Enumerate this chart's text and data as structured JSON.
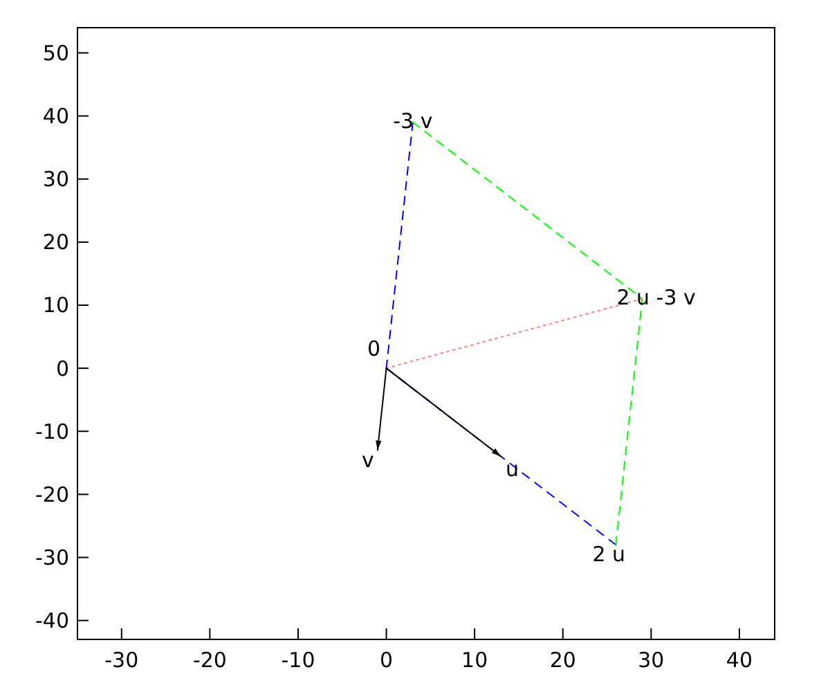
{
  "chart_data": {
    "type": "line",
    "xlim": [
      -35,
      44
    ],
    "ylim": [
      -43,
      54
    ],
    "xticks": [
      -30,
      -20,
      -10,
      0,
      10,
      20,
      30,
      40
    ],
    "yticks": [
      -40,
      -30,
      -20,
      -10,
      0,
      10,
      20,
      30,
      40,
      50
    ],
    "marker": "none",
    "series": [
      {
        "color": "#0000ff",
        "line_style": "dashed",
        "x": [
          0,
          26
        ],
        "values": [
          0,
          -28
        ]
      },
      {
        "color": "#0000ff",
        "line_style": "dashed",
        "x": [
          0,
          3
        ],
        "values": [
          0,
          39
        ]
      },
      {
        "color": "#00ff00",
        "line_style": "dashed",
        "x": [
          3,
          29,
          26
        ],
        "values": [
          39,
          11,
          -28
        ]
      },
      {
        "color": "#ff8080",
        "line_style": "dotted",
        "x": [
          0,
          29
        ],
        "values": [
          0,
          11
        ]
      },
      {
        "color": "#000000",
        "line_style": "solid",
        "x": [
          0,
          13
        ],
        "values": [
          0,
          -14
        ]
      },
      {
        "color": "#000000",
        "line_style": "solid",
        "x": [
          0,
          -1
        ],
        "values": [
          0,
          -13
        ]
      }
    ],
    "annotations": [
      {
        "text": "0",
        "x": 0,
        "y": 0
      },
      {
        "text": "u",
        "x": 13,
        "y": -14
      },
      {
        "text": "v",
        "x": -1,
        "y": -13
      },
      {
        "text": "2 u",
        "x": 26,
        "y": -28
      },
      {
        "text": "-3 v",
        "x": 3,
        "y": 39
      },
      {
        "text": "2 u -3 v",
        "x": 29,
        "y": 11
      }
    ]
  }
}
